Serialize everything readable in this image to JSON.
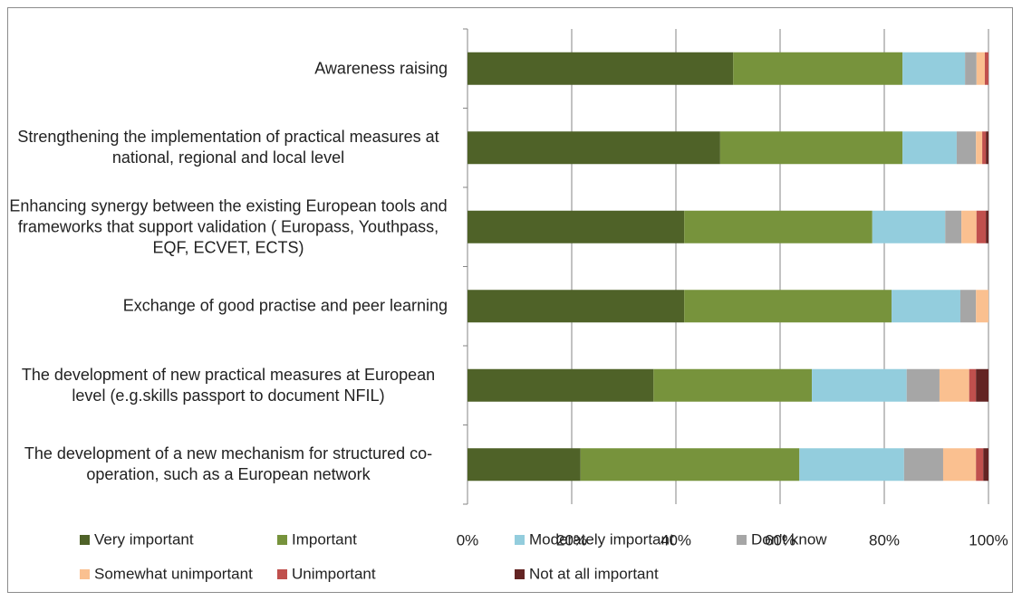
{
  "chart_data": {
    "type": "stacked-bar-horizontal",
    "categories": [
      "Awareness raising",
      "Strengthening the implementation of practical measures at national, regional and local level",
      "Enhancing synergy between the existing European tools and frameworks that support validation ( Europass, Youthpass, EQF, ECVET, ECTS)",
      "Exchange of good practise and peer learning",
      "The development of new practical measures at European level (e.g.skills passport to document NFIL)",
      "The development of a new mechanism for structured co-operation, such as a European network"
    ],
    "series": [
      {
        "name": "Very important",
        "color": "#4f6228",
        "values": [
          51,
          48.5,
          41.6,
          41.6,
          35.7,
          21.7
        ]
      },
      {
        "name": "Important",
        "color": "#77933c",
        "values": [
          32.5,
          35,
          36.1,
          39.8,
          30.4,
          42
        ]
      },
      {
        "name": "Moderately important",
        "color": "#93cddd",
        "values": [
          12,
          10.4,
          14,
          13.2,
          18.2,
          20.1
        ]
      },
      {
        "name": "Don't know",
        "color": "#a6a6a6",
        "values": [
          2.2,
          3.7,
          3.1,
          3,
          6.3,
          7.5
        ]
      },
      {
        "name": "Somewhat unimportant",
        "color": "#fac090",
        "values": [
          1.6,
          1.2,
          2.9,
          2.4,
          5.7,
          6.3
        ]
      },
      {
        "name": "Unimportant",
        "color": "#c0504d",
        "values": [
          0.7,
          0.7,
          1.8,
          0,
          1.3,
          1.4
        ]
      },
      {
        "name": "Not at all important",
        "color": "#632423",
        "values": [
          0,
          0.5,
          0.5,
          0,
          2.4,
          1
        ]
      }
    ],
    "xlim": [
      0,
      100
    ],
    "xticks": [
      {
        "value": 0,
        "label": "0%"
      },
      {
        "value": 20,
        "label": "20%"
      },
      {
        "value": 40,
        "label": "40%"
      },
      {
        "value": 60,
        "label": "60%"
      },
      {
        "value": 80,
        "label": "80%"
      },
      {
        "value": 100,
        "label": "100%"
      }
    ],
    "grid": true,
    "legend": "bottom"
  }
}
